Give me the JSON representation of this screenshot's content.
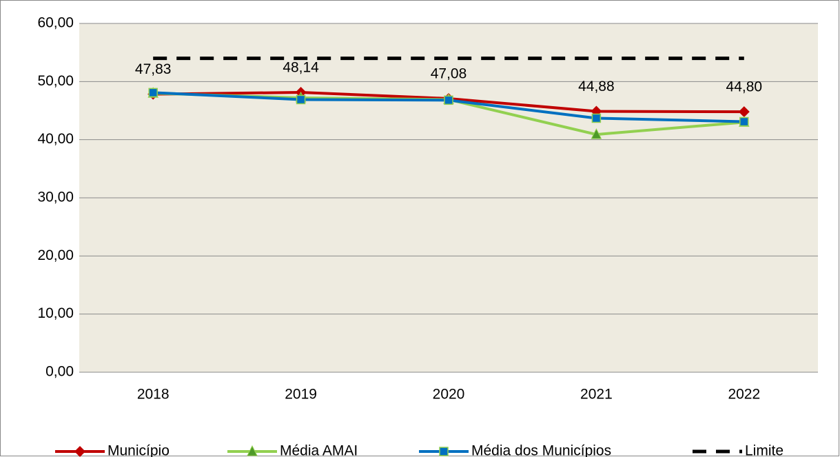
{
  "chart_data": {
    "type": "line",
    "categories": [
      "2018",
      "2019",
      "2020",
      "2021",
      "2022"
    ],
    "series": [
      {
        "name": "Município",
        "color": "#c00000",
        "marker": "diamond",
        "values": [
          47.83,
          48.14,
          47.08,
          44.88,
          44.8
        ],
        "value_labels": [
          "47,83",
          "48,14",
          "47,08",
          "44,88",
          "44,80"
        ]
      },
      {
        "name": "Média AMAI",
        "color": "#92d050",
        "marker": "triangle",
        "values": [
          48.0,
          47.2,
          46.9,
          40.9,
          43.0
        ]
      },
      {
        "name": "Média dos Municípios",
        "color": "#0070c0",
        "marker": "square",
        "values": [
          48.1,
          46.9,
          46.8,
          43.7,
          43.1
        ]
      },
      {
        "name": "Limite",
        "color": "#000000",
        "dashed": true,
        "values": [
          54,
          54,
          54,
          54,
          54
        ]
      }
    ],
    "ylim": [
      0,
      60
    ],
    "yticks": [
      {
        "value": 0,
        "label": "0,00"
      },
      {
        "value": 10,
        "label": "10,00"
      },
      {
        "value": 20,
        "label": "20,00"
      },
      {
        "value": 30,
        "label": "30,00"
      },
      {
        "value": 40,
        "label": "40,00"
      },
      {
        "value": 50,
        "label": "50,00"
      },
      {
        "value": 60,
        "label": "60,00"
      }
    ],
    "grid": true,
    "legend": "bottom"
  }
}
